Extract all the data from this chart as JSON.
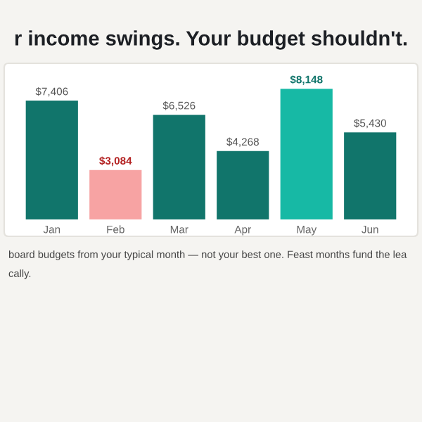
{
  "chart_data": {
    "type": "bar",
    "title": "r income swings. Your budget shouldn't.",
    "categories": [
      "Jan",
      "Feb",
      "Mar",
      "Apr",
      "May",
      "Jun"
    ],
    "values": [
      7406,
      3084,
      6526,
      4268,
      8148,
      5430
    ],
    "colors": [
      "#11756b",
      "#f7a3a3",
      "#11756b",
      "#11756b",
      "#17b9a5",
      "#11756b"
    ],
    "value_labels": [
      "$7,406",
      "$3,084",
      "$6,526",
      "$4,268",
      "$8,148",
      "$5,430"
    ],
    "annotations": [
      "board budgets from your typical month — not your best one. Feast months fund the lea",
      "cally."
    ],
    "grid": false,
    "legend": false
  }
}
